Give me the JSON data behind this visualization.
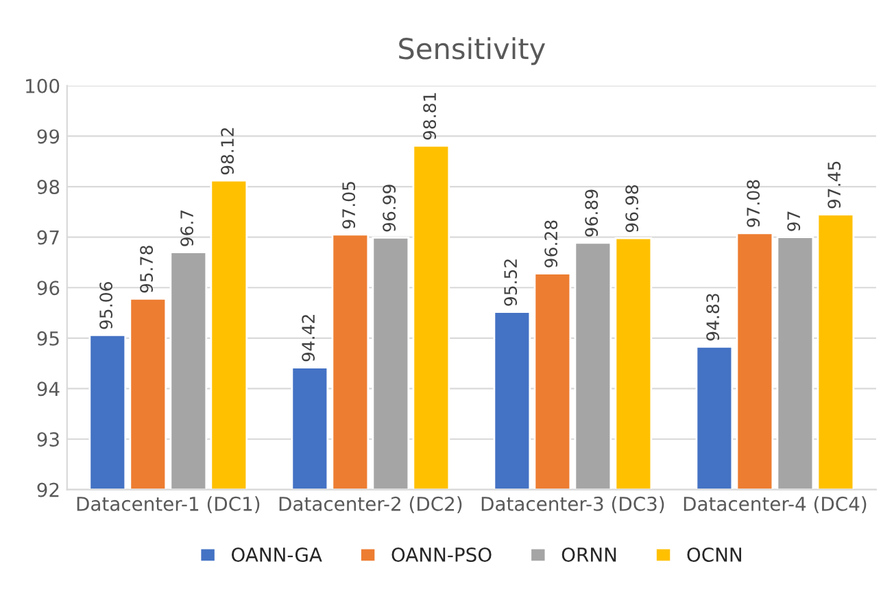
{
  "chart_data": {
    "type": "bar",
    "title": "Sensitivity",
    "categories": [
      "Datacenter-1 (DC1)",
      "Datacenter-2 (DC2)",
      "Datacenter-3 (DC3)",
      "Datacenter-4 (DC4)"
    ],
    "series": [
      {
        "name": "OANN-GA",
        "color": "#4472c4",
        "values": [
          95.06,
          94.42,
          95.52,
          94.83
        ]
      },
      {
        "name": "OANN-PSO",
        "color": "#ed7d31",
        "values": [
          95.78,
          97.05,
          96.28,
          97.08
        ]
      },
      {
        "name": "ORNN",
        "color": "#a5a5a5",
        "values": [
          96.7,
          96.99,
          96.89,
          97
        ]
      },
      {
        "name": "OCNN",
        "color": "#ffc000",
        "values": [
          98.12,
          98.81,
          96.98,
          97.45
        ]
      }
    ],
    "ylim": [
      92,
      100
    ],
    "yticks": [
      92,
      93,
      94,
      95,
      96,
      97,
      98,
      99,
      100
    ],
    "grid": "y",
    "legend": "bottom",
    "data_labels": true
  }
}
